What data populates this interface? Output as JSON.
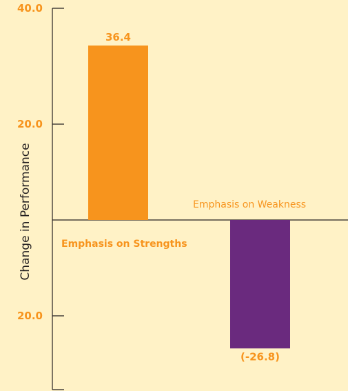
{
  "chart_data": {
    "type": "bar",
    "title": "",
    "xlabel": "",
    "ylabel": "Change in Performance",
    "ylim": [
      -40,
      40
    ],
    "y_ticks": [
      {
        "value": 40,
        "label": "40.0"
      },
      {
        "value": 20,
        "label": "20.0"
      },
      {
        "value": -20,
        "label": "20.0"
      }
    ],
    "categories": [
      "Emphasis on Strengths",
      "Emphasis on Weakness"
    ],
    "values": [
      36.4,
      -26.8
    ],
    "value_labels": [
      "36.4",
      "(-26.8)"
    ],
    "colors": [
      "#F7941D",
      "#6A2A7E"
    ],
    "label_color": "#F7941D",
    "axis_color": "#231F20",
    "text_color": "#231F20",
    "grid": false,
    "legend": "none"
  }
}
